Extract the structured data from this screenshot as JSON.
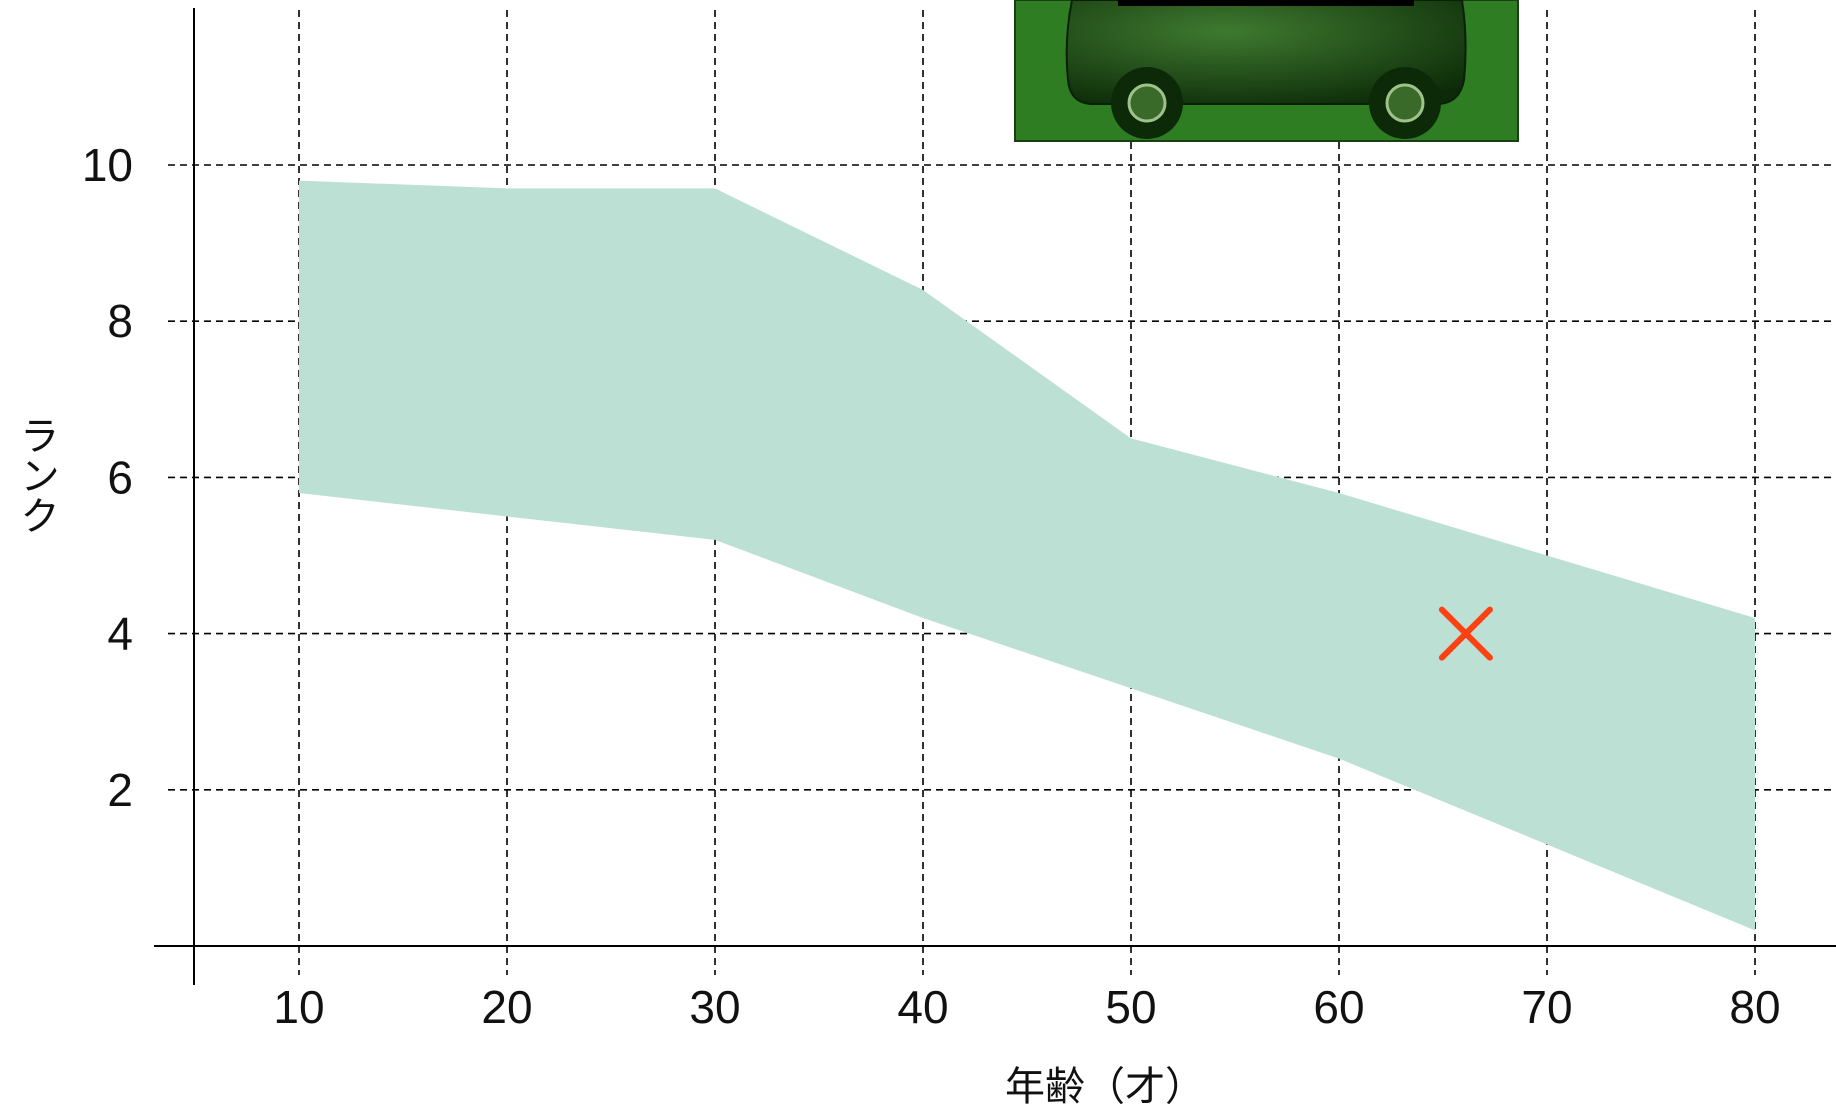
{
  "chart_data": {
    "type": "area",
    "title": "",
    "xlabel": "年齢（才）",
    "ylabel": "ランク",
    "xlim": [
      5,
      86
    ],
    "ylim": [
      0,
      12
    ],
    "x_ticks": [
      10,
      20,
      30,
      40,
      50,
      60,
      70,
      80
    ],
    "y_ticks": [
      2,
      4,
      6,
      8,
      10
    ],
    "grid": true,
    "band": {
      "x": [
        10,
        20,
        30,
        40,
        50,
        60,
        70,
        80
      ],
      "upper": [
        9.8,
        9.7,
        9.7,
        8.4,
        6.5,
        5.8,
        5.0,
        4.2
      ],
      "lower": [
        5.8,
        5.5,
        5.2,
        4.2,
        3.3,
        2.4,
        1.3,
        0.2
      ],
      "color": "#bde0d4"
    },
    "marker": {
      "x": 66.1,
      "y": 4.0,
      "symbol": "×",
      "color": "#ff4010"
    },
    "icon": {
      "name": "car-icon",
      "background": "#2e7d22",
      "body": "#1a4a14"
    }
  }
}
